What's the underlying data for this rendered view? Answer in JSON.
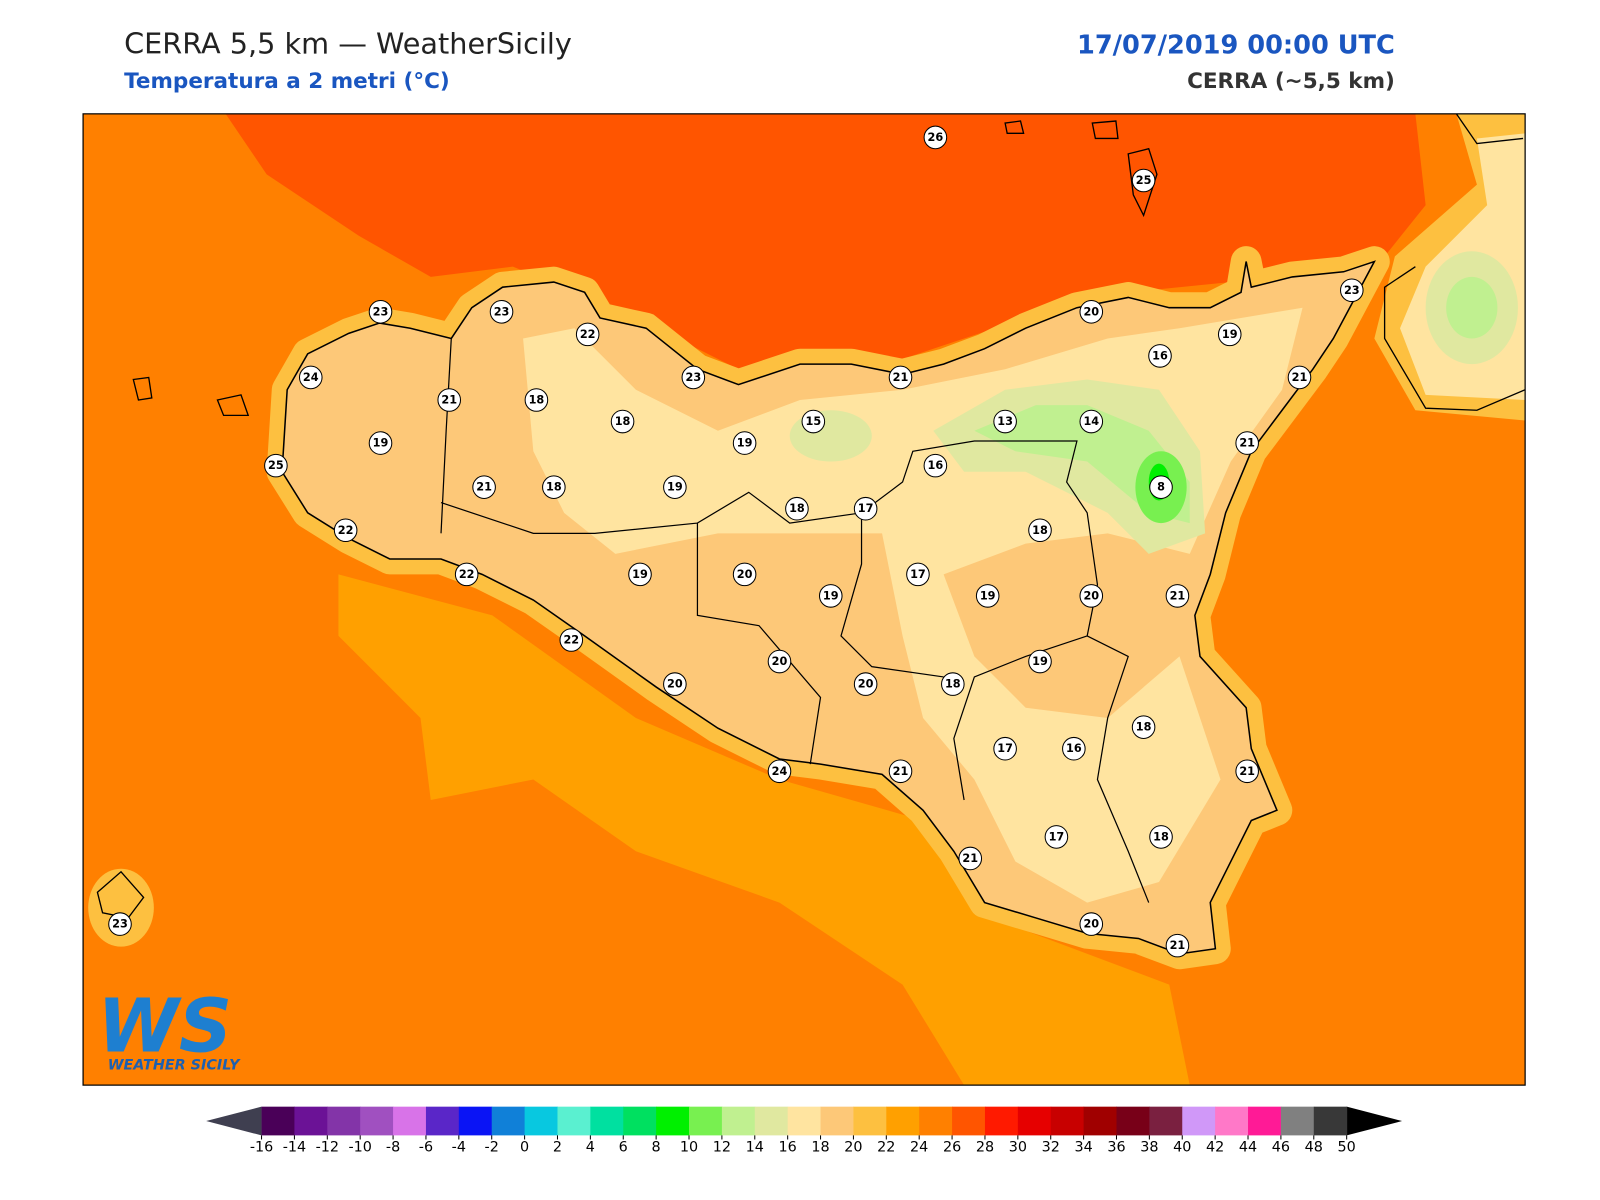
{
  "header": {
    "title": "CERRA 5,5 km — WeatherSicily",
    "subtitle": "Temperatura a 2 metri (°C)",
    "date": "17/07/2019 00:00 UTC",
    "model": "CERRA (~5,5 km)"
  },
  "logo": {
    "mark": "WS",
    "name": "WEATHER SICILY"
  },
  "stations": [
    26,
    25,
    23,
    23,
    22,
    23,
    20,
    19,
    24,
    21,
    18,
    23,
    21,
    16,
    21,
    18,
    15,
    13,
    14,
    19,
    19,
    21,
    25,
    16,
    21,
    18,
    19,
    8,
    18,
    17,
    22,
    18,
    22,
    19,
    20,
    17,
    19,
    19,
    20,
    21,
    22,
    19,
    20,
    20,
    20,
    18,
    18,
    17,
    16,
    24,
    21,
    21,
    17,
    18,
    21,
    23,
    20,
    21
  ],
  "legend": {
    "ticks": [
      -16,
      -14,
      -12,
      -10,
      -8,
      -6,
      -4,
      -2,
      0,
      2,
      4,
      6,
      8,
      10,
      12,
      14,
      16,
      18,
      20,
      22,
      24,
      26,
      28,
      30,
      32,
      34,
      36,
      38,
      40,
      42,
      44,
      46,
      48,
      50
    ],
    "colors": [
      "#4a0058",
      "#6b1296",
      "#8334a8",
      "#a050c0",
      "#d873e8",
      "#5a26c8",
      "#0a14f5",
      "#1080d8",
      "#08c8e0",
      "#5af0d0",
      "#00e0a0",
      "#00e060",
      "#00f000",
      "#78f050",
      "#c0f090",
      "#e0e8a0",
      "#ffe4a0",
      "#fdc878",
      "#fdc040",
      "#ffa000",
      "#ff8000",
      "#ff5500",
      "#ff1a00",
      "#e60000",
      "#c80000",
      "#a00000",
      "#780018",
      "#7a2040",
      "#d098f8",
      "#ff78c8",
      "#ff1a96",
      "#808080",
      "#383838"
    ]
  }
}
